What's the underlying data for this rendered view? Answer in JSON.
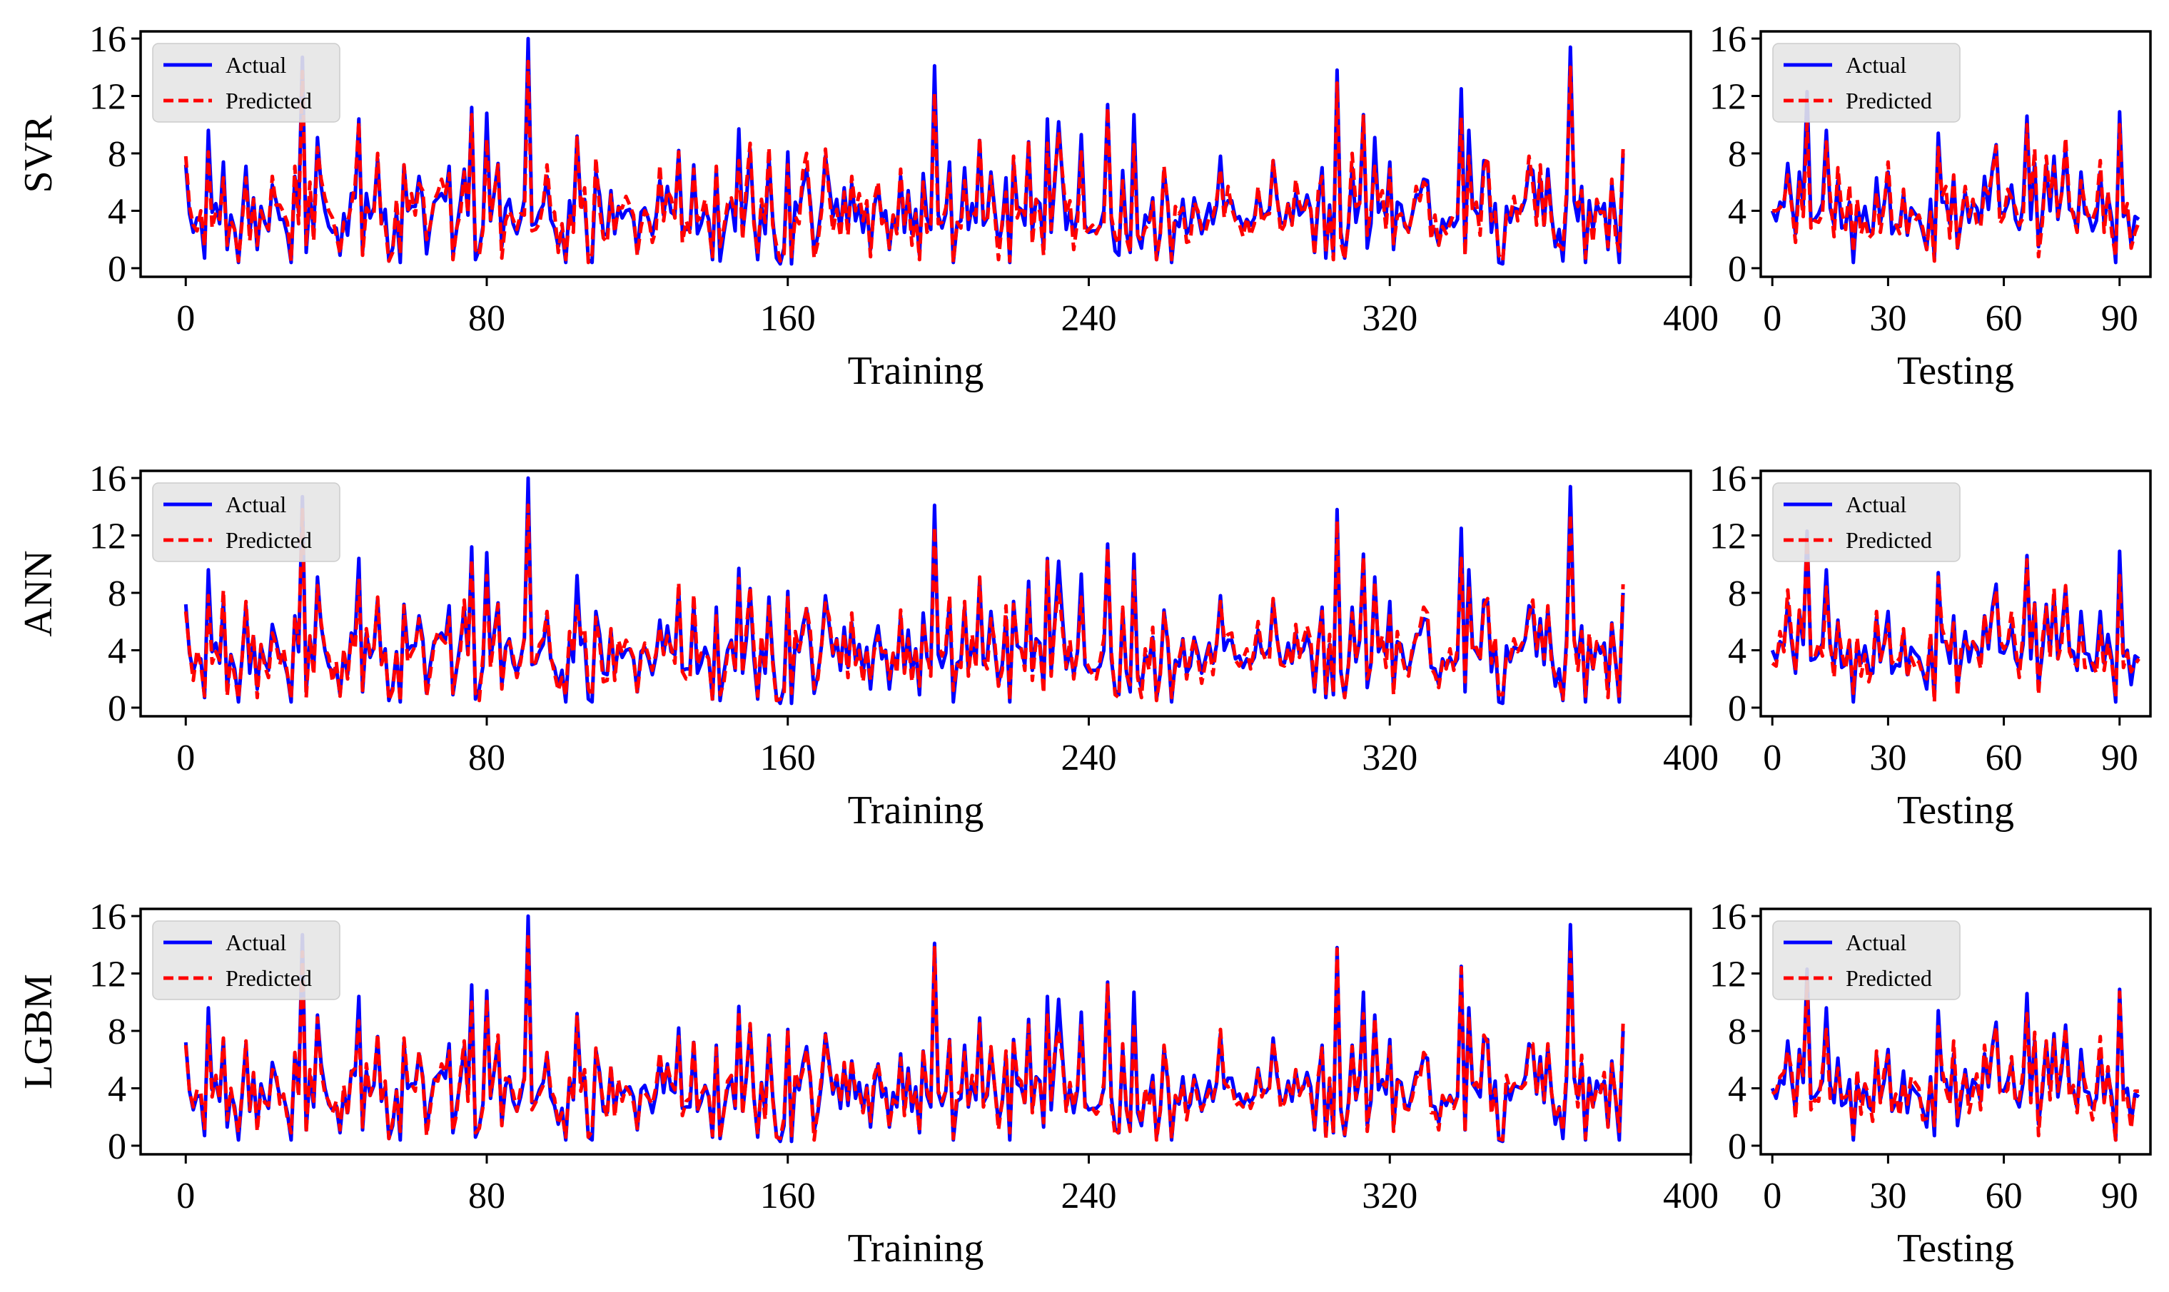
{
  "colors": {
    "actual": "#0000ff",
    "predicted": "#ff0000",
    "legend_bg": "#e6e6e6"
  },
  "legend_labels": [
    "Actual",
    "Predicted"
  ],
  "chart_data": [
    {
      "id": "svr-train",
      "type": "line",
      "model": "SVR",
      "ylabel": "SVR",
      "xlabel": "Training",
      "xlim": [
        -12,
        400
      ],
      "ylim": [
        -0.6,
        16.5
      ],
      "xticks": [
        0,
        80,
        160,
        240,
        320,
        400
      ],
      "yticks": [
        0,
        4,
        8,
        12,
        16
      ],
      "n_points": 383,
      "seed": 11,
      "pred_noise": 1.1,
      "legend": "upper-left",
      "series": [
        {
          "name": "Actual",
          "values": []
        },
        {
          "name": "Predicted",
          "values": []
        }
      ]
    },
    {
      "id": "svr-test",
      "type": "line",
      "model": "SVR",
      "ylabel": "",
      "xlabel": "Testing",
      "xlim": [
        -3,
        98
      ],
      "ylim": [
        -0.6,
        16.5
      ],
      "xticks": [
        0,
        30,
        60,
        90
      ],
      "yticks": [
        0,
        4,
        8,
        12,
        16
      ],
      "n_points": 96,
      "seed": 21,
      "pred_noise": 1.2,
      "legend": "upper-left",
      "series": [
        {
          "name": "Actual",
          "values": []
        },
        {
          "name": "Predicted",
          "values": []
        }
      ]
    },
    {
      "id": "ann-train",
      "type": "line",
      "model": "ANN",
      "ylabel": "ANN",
      "xlabel": "Training",
      "xlim": [
        -12,
        400
      ],
      "ylim": [
        -0.6,
        16.5
      ],
      "xticks": [
        0,
        80,
        160,
        240,
        320,
        400
      ],
      "yticks": [
        0,
        4,
        8,
        12,
        16
      ],
      "n_points": 383,
      "seed": 11,
      "pred_noise": 0.8,
      "legend": "upper-left",
      "series": [
        {
          "name": "Actual",
          "values": []
        },
        {
          "name": "Predicted",
          "values": []
        }
      ]
    },
    {
      "id": "ann-test",
      "type": "line",
      "model": "ANN",
      "ylabel": "",
      "xlabel": "Testing",
      "xlim": [
        -3,
        98
      ],
      "ylim": [
        -0.6,
        16.5
      ],
      "xticks": [
        0,
        30,
        60,
        90
      ],
      "yticks": [
        0,
        4,
        8,
        12,
        16
      ],
      "n_points": 96,
      "seed": 21,
      "pred_noise": 1.0,
      "legend": "upper-left",
      "series": [
        {
          "name": "Actual",
          "values": []
        },
        {
          "name": "Predicted",
          "values": []
        }
      ]
    },
    {
      "id": "lgbm-train",
      "type": "line",
      "model": "LGBM",
      "ylabel": "LGBM",
      "xlabel": "Training",
      "xlim": [
        -12,
        400
      ],
      "ylim": [
        -0.6,
        16.5
      ],
      "xticks": [
        0,
        80,
        160,
        240,
        320,
        400
      ],
      "yticks": [
        0,
        4,
        8,
        12,
        16
      ],
      "n_points": 383,
      "seed": 11,
      "pred_noise": 0.6,
      "legend": "upper-left",
      "series": [
        {
          "name": "Actual",
          "values": []
        },
        {
          "name": "Predicted",
          "values": []
        }
      ]
    },
    {
      "id": "lgbm-test",
      "type": "line",
      "model": "LGBM",
      "ylabel": "",
      "xlabel": "Testing",
      "xlim": [
        -3,
        98
      ],
      "ylim": [
        -0.6,
        16.5
      ],
      "xticks": [
        0,
        30,
        60,
        90
      ],
      "yticks": [
        0,
        4,
        8,
        12,
        16
      ],
      "n_points": 96,
      "seed": 21,
      "pred_noise": 0.9,
      "legend": "upper-left",
      "series": [
        {
          "name": "Actual",
          "values": []
        },
        {
          "name": "Predicted",
          "values": []
        }
      ]
    }
  ]
}
